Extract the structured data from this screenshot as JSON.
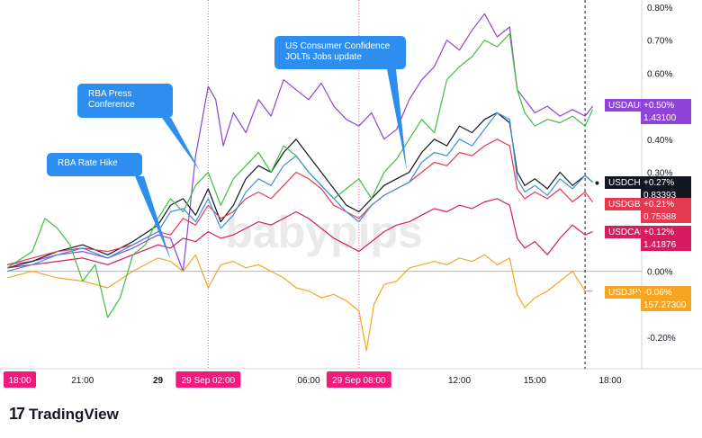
{
  "branding": {
    "logo_mark": "17",
    "name": "TradingView"
  },
  "callouts": [
    {
      "id": "rba-rate-hike",
      "lines": [
        "RBA Rate Hike"
      ],
      "box": "c1"
    },
    {
      "id": "rba-press",
      "lines": [
        "RBA Press",
        "Conference"
      ],
      "box": "c2"
    },
    {
      "id": "us-consumer",
      "lines": [
        "US Consumer Confidence",
        "JOLTs Jobs update"
      ],
      "box": "c3"
    }
  ],
  "colors": {
    "USDAUD": "#8e44d6",
    "USDCHF": "#131722",
    "USDGBP": "#e53950",
    "USDCAD": "#d81b60",
    "USDJPY": "#f5a524",
    "green": "#3fbf3f",
    "blue": "#3d8fe0",
    "callout": "#2d8ef0",
    "highlight": "#f0197d"
  },
  "chart_data": {
    "type": "line",
    "y_unit": "%",
    "ylim": [
      -0.3,
      0.8
    ],
    "y_ticks": [
      "0.80%",
      "0.70%",
      "0.60%",
      "0.40%",
      "0.30%",
      "0.00%",
      "-0.20%"
    ],
    "y_tick_values": [
      0.8,
      0.7,
      0.6,
      0.4,
      0.3,
      0.0,
      -0.2
    ],
    "x_ticks": [
      {
        "label": "21:00",
        "t": 3
      },
      {
        "label": "29",
        "t": 6,
        "bold": true
      },
      {
        "label": "06:00",
        "t": 12
      },
      {
        "label": "12:00",
        "t": 18
      },
      {
        "label": "15:00",
        "t": 21
      },
      {
        "label": "18:00",
        "t": 24
      }
    ],
    "x_highlights": [
      {
        "label": "18:00",
        "t": 0
      },
      {
        "label": "29 Sep   02:00",
        "t": 8
      },
      {
        "label": "29 Sep   08:00",
        "t": 14
      }
    ],
    "event_lines": [
      8,
      14
    ],
    "cursor_t": 23.0,
    "xlim": [
      -0.25,
      25.1
    ],
    "series": [
      {
        "name": "USDAUD",
        "color": "#8e44d6",
        "label_color": "#8e44d6",
        "last_pct": "+0.50%",
        "last_price": "1.43100",
        "last_value": 0.5,
        "x": [
          0,
          1,
          2,
          3,
          4,
          5,
          6,
          6.5,
          7,
          7.5,
          8,
          8.3,
          8.6,
          9,
          9.5,
          10,
          10.5,
          11,
          11.5,
          12,
          12.5,
          13,
          13.5,
          14,
          14.5,
          15,
          15.5,
          16,
          16.5,
          17,
          17.5,
          18,
          18.5,
          19,
          19.5,
          20,
          20.3,
          20.6,
          21,
          21.5,
          22,
          22.5,
          23,
          23.3
        ],
        "y": [
          0.02,
          0.03,
          0.05,
          0.06,
          0.04,
          0.07,
          0.11,
          0.1,
          0.0,
          0.35,
          0.56,
          0.52,
          0.38,
          0.48,
          0.42,
          0.52,
          0.47,
          0.58,
          0.55,
          0.52,
          0.57,
          0.5,
          0.46,
          0.44,
          0.48,
          0.4,
          0.43,
          0.52,
          0.58,
          0.62,
          0.7,
          0.67,
          0.73,
          0.78,
          0.71,
          0.74,
          0.55,
          0.52,
          0.48,
          0.5,
          0.47,
          0.49,
          0.47,
          0.5
        ]
      },
      {
        "name": "USDCHF",
        "color": "#131722",
        "label_color": "#131722",
        "last_pct": "+0.27%",
        "last_price": "0.83393",
        "last_value": 0.27,
        "x": [
          0,
          1,
          2,
          3,
          4,
          5,
          6,
          6.5,
          7,
          7.5,
          8,
          8.5,
          9,
          9.5,
          10,
          10.5,
          11,
          11.5,
          12,
          12.5,
          13,
          13.5,
          14,
          14.5,
          15,
          15.5,
          16,
          16.5,
          17,
          17.5,
          18,
          18.5,
          19,
          19.5,
          20,
          20.3,
          20.6,
          21,
          21.5,
          22,
          22.5,
          23,
          23.3
        ],
        "y": [
          0.01,
          0.03,
          0.06,
          0.08,
          0.05,
          0.09,
          0.14,
          0.2,
          0.22,
          0.17,
          0.25,
          0.15,
          0.2,
          0.28,
          0.32,
          0.3,
          0.36,
          0.4,
          0.35,
          0.3,
          0.25,
          0.2,
          0.18,
          0.22,
          0.26,
          0.28,
          0.3,
          0.36,
          0.4,
          0.38,
          0.44,
          0.42,
          0.46,
          0.48,
          0.45,
          0.3,
          0.26,
          0.28,
          0.25,
          0.3,
          0.26,
          0.29,
          0.27
        ]
      },
      {
        "name": "USDGBP",
        "color": "#e53950",
        "label_color": "#e53950",
        "last_pct": "+0.21%",
        "last_price": "0.75588",
        "last_value": 0.21,
        "x": [
          0,
          1,
          2,
          3,
          4,
          5,
          6,
          6.5,
          7,
          7.5,
          8,
          8.5,
          9,
          9.5,
          10,
          10.5,
          11,
          11.5,
          12,
          12.5,
          13,
          13.5,
          14,
          14.5,
          15,
          15.5,
          16,
          16.5,
          17,
          17.5,
          18,
          18.5,
          19,
          19.5,
          20,
          20.3,
          20.6,
          21,
          21.5,
          22,
          22.5,
          23,
          23.3
        ],
        "y": [
          0.02,
          0.04,
          0.06,
          0.07,
          0.06,
          0.08,
          0.12,
          0.11,
          0.16,
          0.14,
          0.2,
          0.16,
          0.18,
          0.22,
          0.24,
          0.22,
          0.26,
          0.3,
          0.28,
          0.25,
          0.2,
          0.18,
          0.16,
          0.2,
          0.23,
          0.25,
          0.27,
          0.3,
          0.33,
          0.32,
          0.36,
          0.35,
          0.38,
          0.4,
          0.38,
          0.25,
          0.22,
          0.24,
          0.22,
          0.25,
          0.21,
          0.24,
          0.21
        ]
      },
      {
        "name": "USDCAD",
        "color": "#d81b60",
        "label_color": "#d81b60",
        "last_pct": "+0.12%",
        "last_price": "1.41876",
        "last_value": 0.12,
        "x": [
          0,
          1,
          2,
          3,
          4,
          5,
          6,
          6.5,
          7,
          7.5,
          8,
          8.5,
          9,
          9.5,
          10,
          10.5,
          11,
          11.5,
          12,
          12.5,
          13,
          13.5,
          14,
          14.5,
          15,
          15.5,
          16,
          16.5,
          17,
          17.5,
          18,
          18.5,
          19,
          19.5,
          20,
          20.3,
          20.6,
          21,
          21.5,
          22,
          22.5,
          23,
          23.3
        ],
        "y": [
          0.01,
          0.02,
          0.03,
          0.04,
          0.02,
          0.05,
          0.08,
          0.07,
          0.1,
          0.09,
          0.12,
          0.1,
          0.11,
          0.13,
          0.15,
          0.14,
          0.16,
          0.18,
          0.16,
          0.13,
          0.1,
          0.08,
          0.06,
          0.09,
          0.12,
          0.14,
          0.15,
          0.17,
          0.19,
          0.18,
          0.2,
          0.19,
          0.21,
          0.22,
          0.2,
          0.1,
          0.07,
          0.09,
          0.05,
          0.1,
          0.14,
          0.11,
          0.12
        ]
      },
      {
        "name": "USDJPY",
        "color": "#f5a524",
        "label_color": "#f5a524",
        "last_pct": "-0.06%",
        "last_price": "157.27300",
        "last_value": -0.06,
        "x": [
          0,
          1,
          2,
          3,
          4,
          5,
          6,
          6.5,
          7,
          7.5,
          8,
          8.5,
          9,
          9.5,
          10,
          10.5,
          11,
          11.5,
          12,
          12.5,
          13,
          13.5,
          14,
          14.3,
          14.6,
          15,
          15.5,
          16,
          16.5,
          17,
          17.5,
          18,
          18.5,
          19,
          19.5,
          20,
          20.3,
          20.6,
          21,
          21.5,
          22,
          22.5,
          23,
          23.3
        ],
        "y": [
          -0.02,
          0.0,
          -0.02,
          -0.03,
          -0.05,
          0.0,
          0.04,
          0.03,
          0.0,
          0.05,
          -0.05,
          0.02,
          0.03,
          0.01,
          0.02,
          0.0,
          -0.02,
          -0.05,
          -0.06,
          -0.08,
          -0.07,
          -0.09,
          -0.12,
          -0.24,
          -0.1,
          -0.04,
          -0.03,
          0.01,
          0.02,
          0.03,
          0.02,
          0.04,
          0.03,
          0.05,
          0.02,
          0.04,
          -0.07,
          -0.11,
          -0.08,
          -0.06,
          -0.03,
          0.0,
          -0.06,
          -0.06
        ]
      },
      {
        "name": "",
        "color": "#3fbf3f",
        "x": [
          0,
          1,
          1.5,
          2,
          2.5,
          3,
          3.5,
          4,
          4.5,
          5,
          5.5,
          6,
          6.5,
          7,
          7.5,
          8,
          8.5,
          9,
          9.5,
          10,
          10.5,
          11,
          11.5,
          12,
          12.5,
          13,
          13.5,
          14,
          14.5,
          15,
          15.5,
          16,
          16.5,
          17,
          17.5,
          18,
          18.5,
          19,
          19.5,
          20,
          20.3,
          20.6,
          21,
          21.5,
          22,
          22.5,
          23,
          23.3
        ],
        "y": [
          0.01,
          0.06,
          0.16,
          0.13,
          0.08,
          -0.03,
          0.02,
          -0.14,
          -0.08,
          0.05,
          0.08,
          0.16,
          0.22,
          0.18,
          0.26,
          0.3,
          0.2,
          0.28,
          0.32,
          0.36,
          0.3,
          0.38,
          0.35,
          0.3,
          0.26,
          0.22,
          0.25,
          0.28,
          0.22,
          0.3,
          0.34,
          0.4,
          0.46,
          0.42,
          0.58,
          0.62,
          0.65,
          0.7,
          0.68,
          0.72,
          0.55,
          0.48,
          0.44,
          0.46,
          0.45,
          0.47,
          0.44,
          0.49
        ]
      },
      {
        "name": "",
        "color": "#3d8fe0",
        "x": [
          0,
          1,
          2,
          3,
          4,
          5,
          6,
          6.5,
          7,
          7.5,
          8,
          8.5,
          9,
          9.5,
          10,
          10.5,
          11,
          11.5,
          12,
          12.5,
          13,
          13.5,
          14,
          14.5,
          15,
          15.5,
          16,
          16.5,
          17,
          17.5,
          18,
          18.5,
          19,
          19.5,
          20,
          20.3,
          20.6,
          21,
          21.5,
          22,
          22.5,
          23,
          23.3
        ],
        "y": [
          0.0,
          0.02,
          0.05,
          0.07,
          0.04,
          0.08,
          0.12,
          0.18,
          0.19,
          0.15,
          0.22,
          0.13,
          0.17,
          0.24,
          0.28,
          0.26,
          0.32,
          0.35,
          0.3,
          0.26,
          0.22,
          0.18,
          0.15,
          0.2,
          0.23,
          0.25,
          0.27,
          0.33,
          0.36,
          0.35,
          0.4,
          0.38,
          0.43,
          0.48,
          0.46,
          0.28,
          0.24,
          0.26,
          0.23,
          0.28,
          0.25,
          0.29,
          0.27
        ]
      }
    ]
  }
}
